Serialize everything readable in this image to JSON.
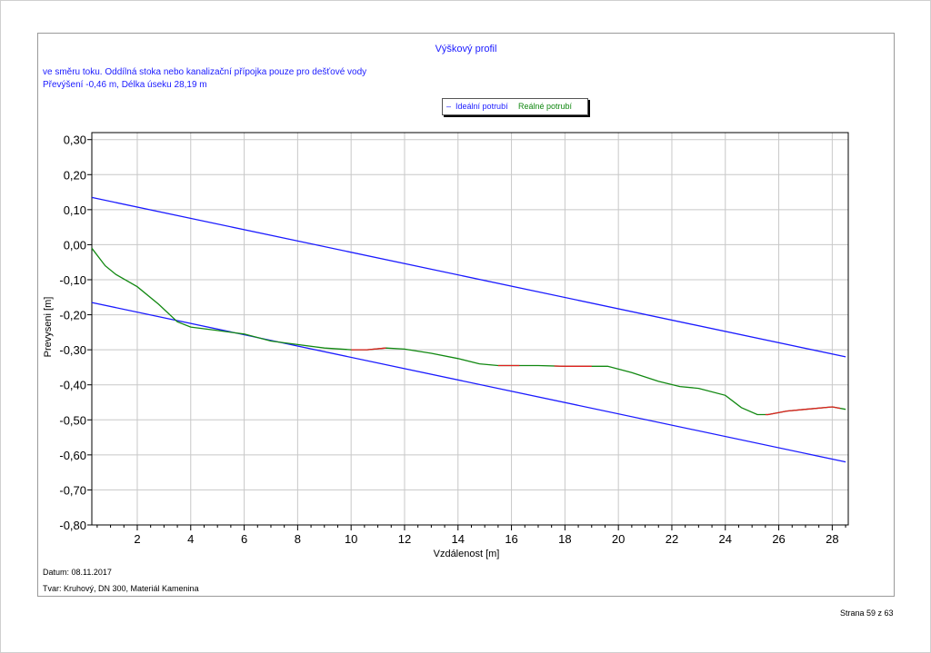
{
  "page": {
    "title": "Výškový profil",
    "subtitle_line1": "ve směru toku. Oddílná stoka nebo kanalizační přípojka pouze pro dešťové vody",
    "subtitle_line2": "Převýšení -0,46 m, Délka úseku  28,19 m",
    "footer_date": "Datum: 08.11.2017",
    "footer_shape": "Tvar: Kruhový, DN 300, Materiál Kamenina",
    "page_number": "Strana 59 z 63"
  },
  "legend": {
    "ideal_label": "Ideální potrubí",
    "ideal_marker": "–",
    "real_label": "Reálné potrubí"
  },
  "colors": {
    "ideal": "#1a1aff",
    "real_ok": "#118811",
    "real_deviation": "#e02020",
    "grid": "#c8c8c8",
    "text_blue": "#1a1aff"
  },
  "chart_data": {
    "type": "line",
    "title": "Výškový profil",
    "xlabel": "Vzdálenost [m]",
    "ylabel": "Prevyseni [m]",
    "xlim": [
      0.3,
      28.6
    ],
    "ylim": [
      -0.8,
      0.32
    ],
    "x_ticks": [
      2,
      4,
      6,
      8,
      10,
      12,
      14,
      16,
      18,
      20,
      22,
      24,
      26,
      28
    ],
    "x_tick_labels": [
      "2",
      "4",
      "6",
      "8",
      "10",
      "12",
      "14",
      "16",
      "18",
      "20",
      "22",
      "24",
      "26",
      "28"
    ],
    "y_ticks": [
      0.3,
      0.2,
      0.1,
      0.0,
      -0.1,
      -0.2,
      -0.3,
      -0.4,
      -0.5,
      -0.6,
      -0.7,
      -0.8
    ],
    "y_tick_labels": [
      "0,30",
      "0,20",
      "0,10",
      "0,00",
      "-0,10",
      "-0,20",
      "-0,30",
      "-0,40",
      "-0,50",
      "-0,60",
      "-0,70",
      "-0,80"
    ],
    "grid": true,
    "legend_position": "top-center",
    "series": [
      {
        "name": "Ideální potrubí",
        "style": "ideal",
        "x": [
          0.3,
          28.5
        ],
        "y": [
          0.135,
          -0.32
        ]
      },
      {
        "name": "",
        "style": "ideal",
        "x": [
          0.3,
          28.5
        ],
        "y": [
          -0.165,
          -0.62
        ]
      },
      {
        "name": "Reálné potrubí",
        "style": "real",
        "x": [
          0.3,
          0.8,
          1.2,
          2.0,
          2.8,
          3.5,
          4.0,
          5.0,
          6.0,
          7.0,
          8.0,
          9.0,
          10.0,
          10.6,
          11.3,
          12.0,
          13.0,
          14.0,
          14.8,
          15.5,
          16.0,
          17.0,
          18.0,
          19.0,
          19.6,
          20.5,
          21.5,
          22.3,
          23.0,
          24.0,
          24.6,
          25.2,
          25.6,
          26.3,
          27.0,
          28.0,
          28.5
        ],
        "y": [
          -0.01,
          -0.06,
          -0.085,
          -0.12,
          -0.17,
          -0.22,
          -0.235,
          -0.245,
          -0.255,
          -0.275,
          -0.285,
          -0.295,
          -0.3,
          -0.3,
          -0.295,
          -0.298,
          -0.31,
          -0.325,
          -0.34,
          -0.345,
          -0.345,
          -0.345,
          -0.347,
          -0.347,
          -0.347,
          -0.365,
          -0.39,
          -0.405,
          -0.41,
          -0.43,
          -0.465,
          -0.485,
          -0.485,
          -0.475,
          -0.47,
          -0.463,
          -0.47
        ],
        "deviation_ranges": [
          [
            10.0,
            11.3
          ],
          [
            15.5,
            16.3
          ],
          [
            17.6,
            19.0
          ],
          [
            25.5,
            28.3
          ]
        ]
      }
    ]
  }
}
